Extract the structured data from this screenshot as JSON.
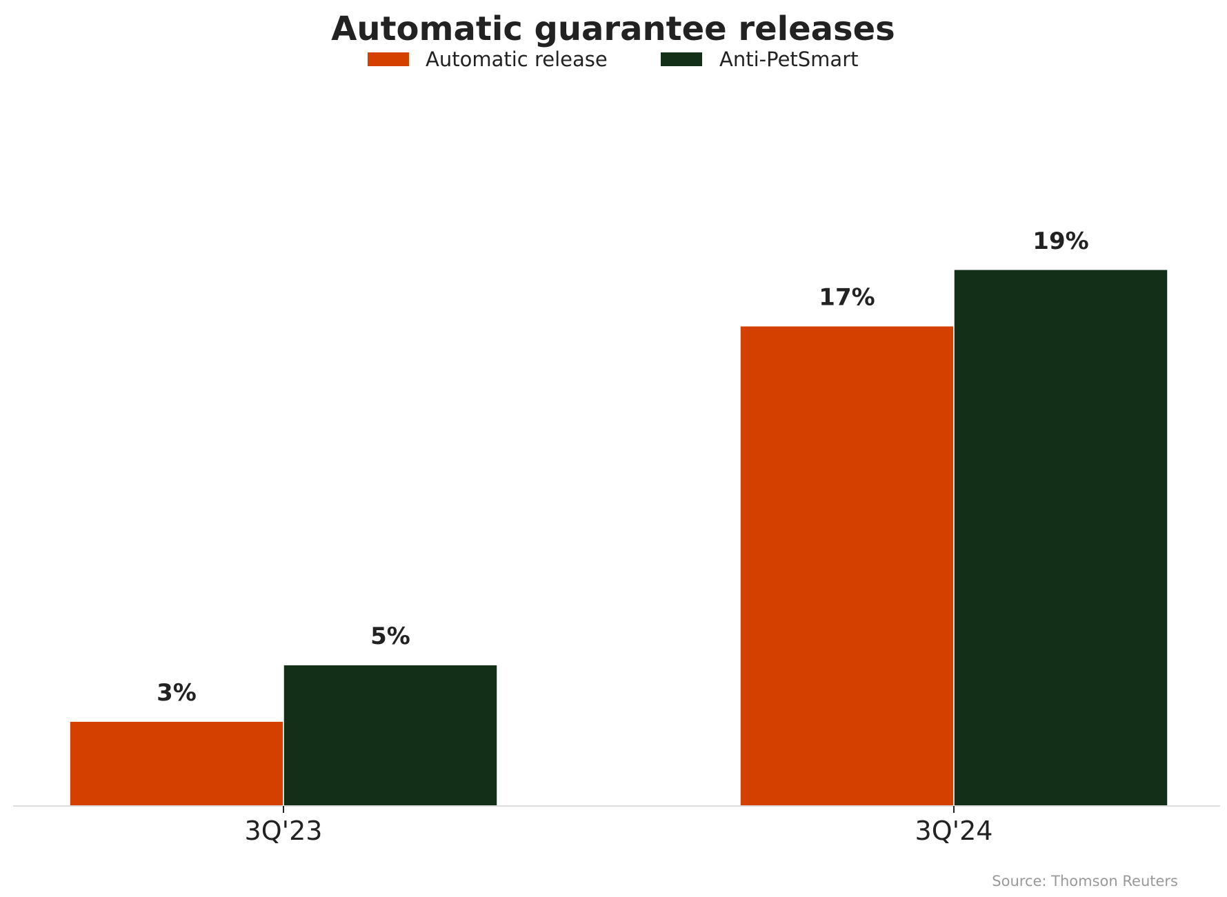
{
  "chart_data": {
    "type": "bar",
    "title": "Automatic guarantee releases",
    "categories": [
      "3Q'23",
      "3Q'24"
    ],
    "series": [
      {
        "name": "Automatic release",
        "color": "#D44000",
        "values": [
          3,
          17
        ],
        "labels": [
          "3%",
          "17%"
        ]
      },
      {
        "name": "Anti-PetSmart",
        "color": "#132F18",
        "values": [
          5,
          19
        ],
        "labels": [
          "5%",
          "19%"
        ]
      }
    ],
    "ylim": [
      0,
      24
    ],
    "grid": false,
    "legend": "top-center",
    "source": "Source: Thomson Reuters"
  },
  "colors": {
    "text": "#222222",
    "axis": "#DDDDDD",
    "source": "#999999"
  }
}
